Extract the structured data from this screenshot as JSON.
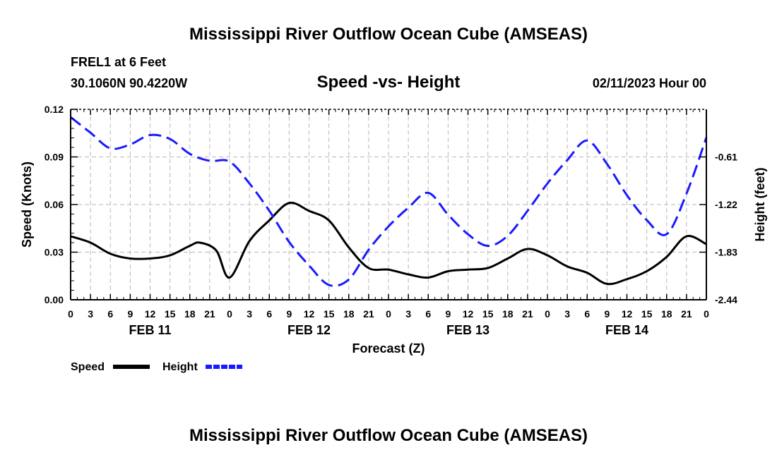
{
  "chart_data": {
    "type": "line",
    "title": "Mississippi River Outflow Ocean Cube (AMSEAS)",
    "station": "FREL1 at 6 Feet",
    "coordinates": "30.1060N  90.4220W",
    "subtitle": "Speed -vs- Height",
    "date": "02/11/2023 Hour 00",
    "xlabel": "Forecast (Z)",
    "ylabel": "Speed (Knots)",
    "y2label": "Height (feet)",
    "x_tick_labels": [
      "0",
      "3",
      "6",
      "9",
      "12",
      "15",
      "18",
      "21",
      "0",
      "3",
      "6",
      "9",
      "12",
      "15",
      "18",
      "21",
      "0",
      "3",
      "6",
      "9",
      "12",
      "15",
      "18",
      "21",
      "0",
      "3",
      "6",
      "9",
      "12",
      "15",
      "18",
      "21",
      "0"
    ],
    "date_labels": [
      {
        "hour": 12,
        "label": "FEB 11"
      },
      {
        "hour": 36,
        "label": "FEB 12"
      },
      {
        "hour": 60,
        "label": "FEB 13"
      },
      {
        "hour": 84,
        "label": "FEB 14"
      }
    ],
    "xlim": [
      0,
      96
    ],
    "ylim": [
      0,
      0.12
    ],
    "y_ticks": [
      "0.00",
      "0.03",
      "0.06",
      "0.09",
      "0.12"
    ],
    "y_tick_values": [
      0,
      0.03,
      0.06,
      0.09,
      0.12
    ],
    "y2lim": [
      -2.44,
      -0.0
    ],
    "y2_ticks": [
      "-2.44",
      "-1.83",
      "-1.22",
      "-0.61"
    ],
    "y2_tick_values": [
      -2.44,
      -1.83,
      -1.22,
      -0.61
    ],
    "grid": true,
    "series": [
      {
        "name": "Speed",
        "axis": "left",
        "color": "#000000",
        "style": "solid",
        "points": [
          [
            0,
            0.04
          ],
          [
            3,
            0.036
          ],
          [
            6,
            0.029
          ],
          [
            9,
            0.026
          ],
          [
            12,
            0.026
          ],
          [
            15,
            0.028
          ],
          [
            18,
            0.034
          ],
          [
            19.5,
            0.036
          ],
          [
            22,
            0.031
          ],
          [
            24,
            0.014
          ],
          [
            27,
            0.037
          ],
          [
            30,
            0.05
          ],
          [
            33,
            0.061
          ],
          [
            36,
            0.056
          ],
          [
            39,
            0.05
          ],
          [
            42,
            0.033
          ],
          [
            45,
            0.02
          ],
          [
            48,
            0.019
          ],
          [
            51,
            0.016
          ],
          [
            54,
            0.014
          ],
          [
            57,
            0.018
          ],
          [
            60,
            0.019
          ],
          [
            63,
            0.02
          ],
          [
            66,
            0.026
          ],
          [
            69,
            0.032
          ],
          [
            72,
            0.028
          ],
          [
            75,
            0.021
          ],
          [
            78,
            0.017
          ],
          [
            81,
            0.01
          ],
          [
            84,
            0.013
          ],
          [
            87,
            0.018
          ],
          [
            90,
            0.027
          ],
          [
            93,
            0.04
          ],
          [
            96,
            0.035
          ]
        ]
      },
      {
        "name": "Height",
        "axis": "right",
        "color": "#1a1aff",
        "style": "dashed",
        "points": [
          [
            0,
            -0.1
          ],
          [
            3,
            -0.3
          ],
          [
            6,
            -0.5
          ],
          [
            9,
            -0.45
          ],
          [
            12,
            -0.33
          ],
          [
            15,
            -0.38
          ],
          [
            18,
            -0.57
          ],
          [
            21,
            -0.66
          ],
          [
            24,
            -0.67
          ],
          [
            27,
            -0.95
          ],
          [
            30,
            -1.3
          ],
          [
            33,
            -1.7
          ],
          [
            36,
            -2.0
          ],
          [
            39,
            -2.25
          ],
          [
            42,
            -2.18
          ],
          [
            45,
            -1.8
          ],
          [
            48,
            -1.5
          ],
          [
            51,
            -1.26
          ],
          [
            54,
            -1.07
          ],
          [
            57,
            -1.35
          ],
          [
            60,
            -1.6
          ],
          [
            63,
            -1.75
          ],
          [
            66,
            -1.62
          ],
          [
            69,
            -1.3
          ],
          [
            72,
            -0.95
          ],
          [
            75,
            -0.65
          ],
          [
            78,
            -0.4
          ],
          [
            81,
            -0.7
          ],
          [
            84,
            -1.1
          ],
          [
            87,
            -1.42
          ],
          [
            90,
            -1.6
          ],
          [
            93,
            -1.08
          ],
          [
            96,
            -0.36
          ]
        ]
      }
    ],
    "legend": [
      {
        "label": "Speed",
        "color": "#000000",
        "style": "solid"
      },
      {
        "label": "Height",
        "color": "#1a1aff",
        "style": "dashed"
      }
    ]
  },
  "footer_title": "Mississippi River Outflow Ocean Cube (AMSEAS)"
}
